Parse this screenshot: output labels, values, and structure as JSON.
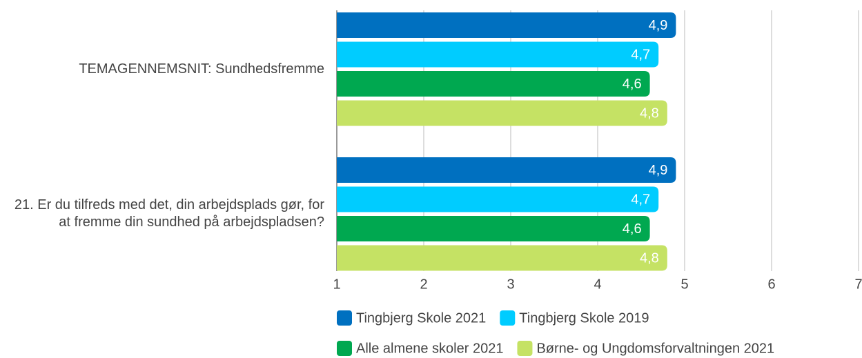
{
  "chart_data": {
    "type": "bar",
    "orientation": "horizontal",
    "categories": [
      "TEMAGENNEMSNIT: Sundhedsfremme",
      "21. Er du tilfreds med det, din arbejdsplads gør, for at fremme din sundhed på arbejdspladsen?"
    ],
    "series": [
      {
        "name": "Tingbjerg Skole 2021",
        "color": "#0070c0",
        "values": [
          4.9,
          4.9
        ],
        "value_labels": [
          "4,9",
          "4,9"
        ]
      },
      {
        "name": "Tingbjerg Skole 2019",
        "color": "#00ccff",
        "values": [
          4.7,
          4.7
        ],
        "value_labels": [
          "4,7",
          "4,7"
        ]
      },
      {
        "name": "Alle almene skoler 2021",
        "color": "#00a850",
        "values": [
          4.6,
          4.6
        ],
        "value_labels": [
          "4,6",
          "4,6"
        ]
      },
      {
        "name": "Børne- og Ungdomsforvaltningen 2021",
        "color": "#c5e264",
        "values": [
          4.8,
          4.8
        ],
        "value_labels": [
          "4,8",
          "4,8"
        ]
      }
    ],
    "xlim": [
      1,
      7
    ],
    "xticks": [
      1,
      2,
      3,
      4,
      5,
      6,
      7
    ],
    "grid": true,
    "legend": "bottom"
  }
}
